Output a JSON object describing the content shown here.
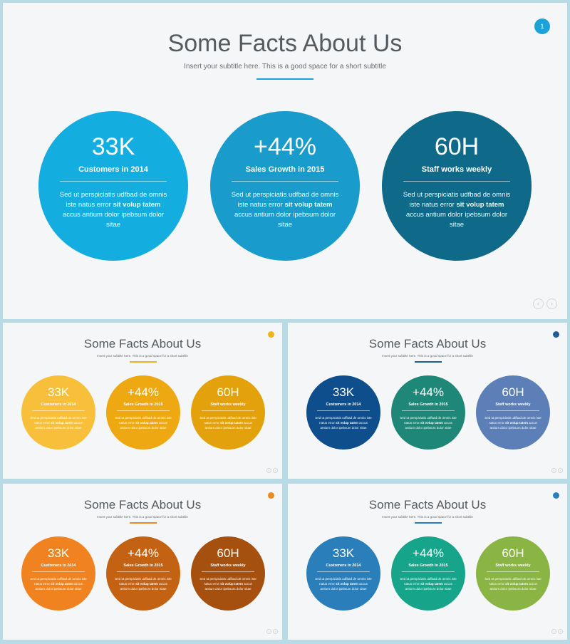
{
  "title": "Some Facts About Us",
  "subtitle": "Insert your subtitle here. This is a good space for a short subtitle",
  "facts": [
    {
      "number": "33K",
      "label": "Customers in 2014"
    },
    {
      "number": "+44%",
      "label": "Sales Growth in 2015"
    },
    {
      "number": "60H",
      "label": "Staff works weekly"
    }
  ],
  "desc": {
    "part1": "Sed ut perspiciatis udfbad de omnis iste natus error ",
    "bold": "sit volup tatem",
    "part2": " accus antium dolor ipebsum dolor sitae"
  },
  "page_number": "1",
  "nav": {
    "prev_icon": "chevron-left-icon",
    "next_icon": "chevron-right-icon",
    "prev_glyph": "‹",
    "next_glyph": "›"
  },
  "themes": [
    {
      "accent": "#1aa3d9",
      "circles": [
        "#14ade0",
        "#199ccb",
        "#0e6a88"
      ]
    },
    {
      "accent": "#f2b21f",
      "circles": [
        "#f8bf3a",
        "#eea912",
        "#e3a10c"
      ]
    },
    {
      "accent": "#215c94",
      "circles": [
        "#0e4e8c",
        "#1f8778",
        "#5c7fb8"
      ]
    },
    {
      "accent": "#ef8a1e",
      "circles": [
        "#f0831f",
        "#c46214",
        "#a5500f"
      ]
    },
    {
      "accent": "#2c7fbb",
      "circles": [
        "#2a7fbb",
        "#16a48a",
        "#8ab443"
      ]
    }
  ]
}
